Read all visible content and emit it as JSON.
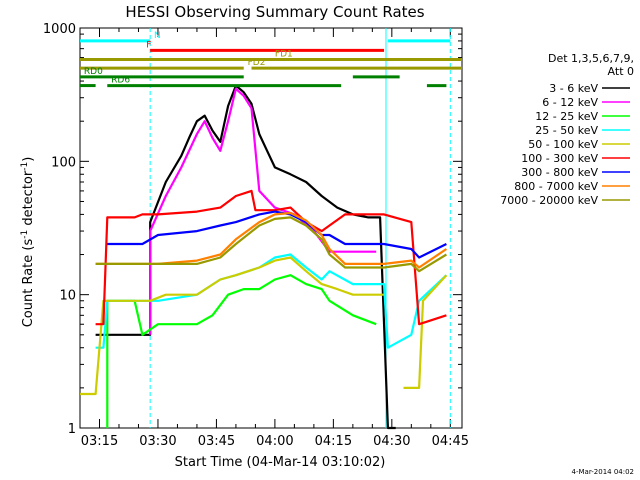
{
  "chart_data": {
    "type": "line",
    "title": "HESSI Observing Summary Count Rates",
    "xlabel": "Start Time (04-Mar-14 03:10:02)",
    "ylabel_main": "Count Rate (s",
    "ylabel_sup1": "-1",
    "ylabel_mid": " detector",
    "ylabel_sup2": "-1",
    "ylabel_end": ")",
    "ylog": true,
    "ylim": [
      1,
      1000
    ],
    "xlim": [
      "03:10",
      "04:48"
    ],
    "x_ticks": [
      "03:15",
      "03:30",
      "03:45",
      "04:00",
      "04:15",
      "04:30",
      "04:45"
    ],
    "y_ticks": [
      "1",
      "10",
      "100",
      "1000"
    ],
    "footer_stamp": "4-Mar-2014 04:02",
    "legend_title": [
      "Det 1,3,5,6,7,9,",
      "Att 0"
    ],
    "legend": [
      {
        "label": "3 - 6 keV",
        "color": "#000000"
      },
      {
        "label": "6 - 12 keV",
        "color": "#ff00ff"
      },
      {
        "label": "12 - 25 keV",
        "color": "#00ff00"
      },
      {
        "label": "25 - 50 keV",
        "color": "#00ffff"
      },
      {
        "label": "50 - 100 keV",
        "color": "#cccc00"
      },
      {
        "label": "100 - 300 keV",
        "color": "#ff0000"
      },
      {
        "label": "300 - 800 keV",
        "color": "#0000ff"
      },
      {
        "label": "800 - 7000 keV",
        "color": "#ff8000"
      },
      {
        "label": "7000 - 20000 keV",
        "color": "#999900"
      }
    ],
    "flags": [
      {
        "label": "N",
        "color": "#00ffff",
        "y": 800,
        "segments": [
          [
            "03:10",
            "03:28"
          ],
          [
            "04:29",
            "04:45"
          ]
        ]
      },
      {
        "label": "F",
        "color": "#ff0000",
        "y": 680,
        "segments": [
          [
            "03:28",
            "04:28"
          ]
        ]
      },
      {
        "label": "FD1",
        "color": "#999900",
        "y": 580,
        "segments": [
          [
            "03:10",
            "04:48"
          ]
        ]
      },
      {
        "label": "FD2",
        "color": "#999900",
        "y": 500,
        "segments": [
          [
            "03:10",
            "03:52"
          ],
          [
            "03:54",
            "04:48"
          ]
        ]
      },
      {
        "label": "RD0",
        "color": "#008000",
        "y": 430,
        "segments": [
          [
            "03:10",
            "03:52"
          ],
          [
            "04:20",
            "04:32"
          ]
        ]
      },
      {
        "label": "RD6",
        "color": "#008000",
        "y": 370,
        "segments": [
          [
            "03:10",
            "03:14"
          ],
          [
            "03:17",
            "04:17"
          ],
          [
            "04:39",
            "04:44"
          ]
        ]
      }
    ],
    "flag_labels_x": {
      "N": "03:29",
      "F": "03:27",
      "FD1": "04:00",
      "FD2": "03:53",
      "RD0": "03:11",
      "RD6": "03:18"
    },
    "vlines": [
      {
        "time": "03:28",
        "style": "dashed",
        "color": "#00ffff"
      },
      {
        "time": "04:28.5",
        "style": "solid",
        "color": "#00ffff"
      },
      {
        "time": "04:45",
        "style": "dashed",
        "color": "#00ffff"
      }
    ],
    "series": [
      {
        "name": "3 - 6 keV",
        "color": "#000000",
        "points": [
          [
            "03:10",
            null
          ],
          [
            "03:14",
            null
          ],
          [
            "03:14",
            5
          ],
          [
            "03:24",
            5
          ],
          [
            "03:24",
            5
          ],
          [
            "03:28",
            5
          ],
          [
            "03:28",
            35
          ],
          [
            "03:32",
            70
          ],
          [
            "03:36",
            110
          ],
          [
            "03:38",
            150
          ],
          [
            "03:40",
            200
          ],
          [
            "03:42",
            220
          ],
          [
            "03:44",
            170
          ],
          [
            "03:46",
            140
          ],
          [
            "03:48",
            260
          ],
          [
            "03:50",
            370
          ],
          [
            "03:52",
            330
          ],
          [
            "03:54",
            270
          ],
          [
            "03:56",
            160
          ],
          [
            "03:58",
            120
          ],
          [
            "04:00",
            90
          ],
          [
            "04:04",
            80
          ],
          [
            "04:08",
            70
          ],
          [
            "04:12",
            55
          ],
          [
            "04:16",
            45
          ],
          [
            "04:20",
            40
          ],
          [
            "04:24",
            38
          ],
          [
            "04:27",
            38
          ],
          [
            "04:29",
            1
          ],
          [
            "04:31",
            1
          ],
          [
            "04:33",
            null
          ]
        ]
      },
      {
        "name": "6 - 12 keV",
        "color": "#ff00ff",
        "points": [
          [
            "03:28",
            5
          ],
          [
            "03:28",
            30
          ],
          [
            "03:32",
            55
          ],
          [
            "03:36",
            90
          ],
          [
            "03:40",
            160
          ],
          [
            "03:42",
            200
          ],
          [
            "03:44",
            150
          ],
          [
            "03:46",
            120
          ],
          [
            "03:48",
            200
          ],
          [
            "03:50",
            350
          ],
          [
            "03:52",
            310
          ],
          [
            "03:54",
            250
          ],
          [
            "03:56",
            60
          ],
          [
            "04:00",
            45
          ],
          [
            "04:05",
            40
          ],
          [
            "04:10",
            30
          ],
          [
            "04:14",
            21
          ],
          [
            "04:20",
            21
          ],
          [
            "04:26",
            21
          ],
          [
            "04:28",
            null
          ]
        ]
      },
      {
        "name": "12 - 25 keV",
        "color": "#00ff00",
        "points": [
          [
            "03:17",
            1
          ],
          [
            "03:17",
            9
          ],
          [
            "03:24",
            9
          ],
          [
            "03:26",
            5
          ],
          [
            "03:30",
            6
          ],
          [
            "03:40",
            6
          ],
          [
            "03:44",
            7
          ],
          [
            "03:48",
            10
          ],
          [
            "03:52",
            11
          ],
          [
            "03:56",
            11
          ],
          [
            "04:00",
            13
          ],
          [
            "04:04",
            14
          ],
          [
            "04:08",
            12
          ],
          [
            "04:12",
            11
          ],
          [
            "04:14",
            9
          ],
          [
            "04:20",
            7
          ],
          [
            "04:26",
            6
          ],
          [
            "04:28",
            null
          ]
        ]
      },
      {
        "name": "25 - 50 keV",
        "color": "#00ffff",
        "points": [
          [
            "03:14",
            4
          ],
          [
            "03:16",
            4
          ],
          [
            "03:17",
            9
          ],
          [
            "03:24",
            9
          ],
          [
            "03:26",
            9
          ],
          [
            "03:30",
            9
          ],
          [
            "03:40",
            10
          ],
          [
            "03:46",
            13
          ],
          [
            "03:50",
            14
          ],
          [
            "03:56",
            16
          ],
          [
            "04:00",
            19
          ],
          [
            "04:04",
            20
          ],
          [
            "04:08",
            16
          ],
          [
            "04:12",
            13
          ],
          [
            "04:14",
            15
          ],
          [
            "04:20",
            12
          ],
          [
            "04:28",
            12
          ],
          [
            "04:29",
            4
          ],
          [
            "04:35",
            5
          ],
          [
            "04:37",
            9
          ],
          [
            "04:44",
            14
          ]
        ]
      },
      {
        "name": "50 - 100 keV",
        "color": "#cccc00",
        "points": [
          [
            "03:10",
            1.8
          ],
          [
            "03:14",
            1.8
          ],
          [
            "03:16",
            9
          ],
          [
            "03:24",
            9
          ],
          [
            "03:28",
            9
          ],
          [
            "03:32",
            10
          ],
          [
            "03:40",
            10
          ],
          [
            "03:46",
            13
          ],
          [
            "03:50",
            14
          ],
          [
            "03:56",
            16
          ],
          [
            "04:00",
            18
          ],
          [
            "04:04",
            19
          ],
          [
            "04:08",
            15
          ],
          [
            "04:12",
            12
          ],
          [
            "04:16",
            11
          ],
          [
            "04:20",
            10
          ],
          [
            "04:28",
            10
          ],
          [
            "04:29",
            null
          ],
          [
            "04:33",
            2
          ],
          [
            "04:37",
            2
          ],
          [
            "04:38",
            9
          ],
          [
            "04:44",
            14
          ]
        ]
      },
      {
        "name": "100 - 300 keV",
        "color": "#ff0000",
        "points": [
          [
            "03:10",
            null
          ],
          [
            "03:14",
            6
          ],
          [
            "03:16",
            6
          ],
          [
            "03:17",
            38
          ],
          [
            "03:24",
            38
          ],
          [
            "03:26",
            40
          ],
          [
            "03:30",
            40
          ],
          [
            "03:40",
            42
          ],
          [
            "03:46",
            45
          ],
          [
            "03:50",
            55
          ],
          [
            "03:54",
            60
          ],
          [
            "03:55",
            43
          ],
          [
            "04:00",
            43
          ],
          [
            "04:04",
            45
          ],
          [
            "04:08",
            35
          ],
          [
            "04:12",
            30
          ],
          [
            "04:14",
            33
          ],
          [
            "04:18",
            40
          ],
          [
            "04:28",
            40
          ],
          [
            "04:35",
            35
          ],
          [
            "04:37",
            6
          ],
          [
            "04:44",
            7
          ]
        ]
      },
      {
        "name": "300 - 800 keV",
        "color": "#0000ff",
        "points": [
          [
            "03:17",
            24
          ],
          [
            "03:24",
            24
          ],
          [
            "03:26",
            24
          ],
          [
            "03:30",
            28
          ],
          [
            "03:40",
            30
          ],
          [
            "03:46",
            33
          ],
          [
            "03:50",
            35
          ],
          [
            "03:56",
            40
          ],
          [
            "04:00",
            42
          ],
          [
            "04:04",
            40
          ],
          [
            "04:08",
            35
          ],
          [
            "04:12",
            28
          ],
          [
            "04:14",
            28
          ],
          [
            "04:18",
            24
          ],
          [
            "04:28",
            24
          ],
          [
            "04:35",
            22
          ],
          [
            "04:37",
            19
          ],
          [
            "04:44",
            24
          ]
        ]
      },
      {
        "name": "800 - 7000 keV",
        "color": "#ff8000",
        "points": [
          [
            "03:14",
            17
          ],
          [
            "03:24",
            17
          ],
          [
            "03:26",
            17
          ],
          [
            "03:30",
            17
          ],
          [
            "03:40",
            18
          ],
          [
            "03:46",
            20
          ],
          [
            "03:50",
            26
          ],
          [
            "03:56",
            35
          ],
          [
            "04:00",
            40
          ],
          [
            "04:04",
            41
          ],
          [
            "04:08",
            36
          ],
          [
            "04:12",
            28
          ],
          [
            "04:14",
            22
          ],
          [
            "04:18",
            17
          ],
          [
            "04:28",
            17
          ],
          [
            "04:35",
            18
          ],
          [
            "04:37",
            16
          ],
          [
            "04:44",
            22
          ]
        ]
      },
      {
        "name": "7000 - 20000 keV",
        "color": "#999900",
        "points": [
          [
            "03:14",
            17
          ],
          [
            "03:24",
            17
          ],
          [
            "03:30",
            17
          ],
          [
            "03:40",
            17
          ],
          [
            "03:46",
            19
          ],
          [
            "03:50",
            24
          ],
          [
            "03:56",
            33
          ],
          [
            "04:00",
            37
          ],
          [
            "04:04",
            38
          ],
          [
            "04:08",
            33
          ],
          [
            "04:12",
            26
          ],
          [
            "04:14",
            20
          ],
          [
            "04:18",
            16
          ],
          [
            "04:28",
            16
          ],
          [
            "04:35",
            17
          ],
          [
            "04:37",
            15
          ],
          [
            "04:44",
            20
          ]
        ]
      }
    ]
  }
}
